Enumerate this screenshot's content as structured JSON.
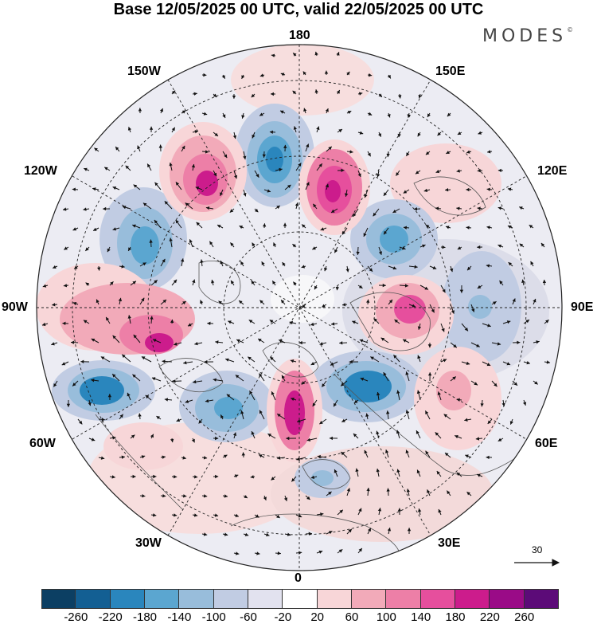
{
  "title": "Base 12/05/2025 00 UTC, valid 22/05/2025 00 UTC",
  "brand": "MODES",
  "brand_mark": "©",
  "longitude_labels": {
    "top": "180",
    "bottom": "0",
    "left": "90W",
    "right": "90E",
    "upper_left_1": "150W",
    "upper_left_2": "120W",
    "upper_right_1": "150E",
    "upper_right_2": "120E",
    "lower_left_1": "60W",
    "lower_left_2": "30W",
    "lower_right_1": "60E",
    "lower_right_2": "30E"
  },
  "vector_reference": "30",
  "colorbar": {
    "colors": [
      "#0c3f63",
      "#135f93",
      "#2a86bd",
      "#5ba6d0",
      "#98bddb",
      "#c1cce3",
      "#e2e2ef",
      "#ffffff",
      "#f8d6d8",
      "#f2aab9",
      "#ed7fa7",
      "#e64f9d",
      "#cc1c8c",
      "#9a0b87",
      "#5c0b78"
    ],
    "ticks": [
      "-260",
      "-220",
      "-180",
      "-140",
      "-100",
      "-60",
      "-20",
      "20",
      "60",
      "100",
      "140",
      "180",
      "220",
      "260"
    ]
  },
  "colors": {
    "neg_strong": "#2a86bd",
    "neg_mid": "#5ba6d0",
    "neg_light": "#c1cce3",
    "pos_light": "#f2aab9",
    "pos_mid": "#e64f9d",
    "pos_strong": "#cc1c8c"
  }
}
